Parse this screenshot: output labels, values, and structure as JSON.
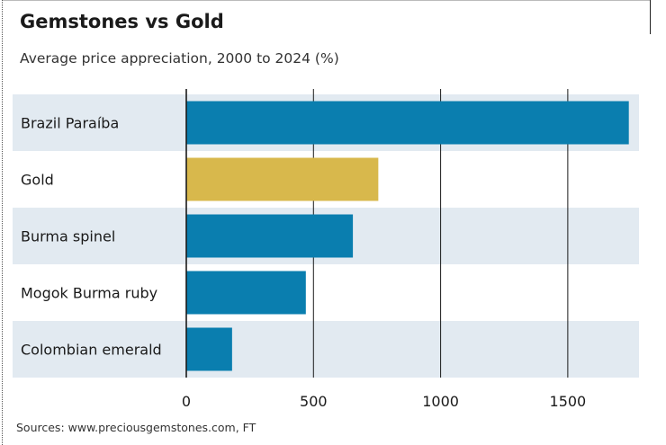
{
  "chart_data": {
    "type": "bar",
    "orientation": "horizontal",
    "title": "Gemstones vs Gold",
    "subtitle": "Average price appreciation, 2000 to 2024 (%)",
    "categories": [
      "Brazil Paraíba",
      "Gold",
      "Burma spinel",
      "Mogok Burma ruby",
      "Colombian emerald"
    ],
    "values": [
      1740,
      755,
      655,
      470,
      180
    ],
    "bar_colors": [
      "#0a7eaf",
      "#d8b84c",
      "#0a7eaf",
      "#0a7eaf",
      "#0a7eaf"
    ],
    "xlim": [
      0,
      1780
    ],
    "xticks": [
      0,
      500,
      1000,
      1500
    ],
    "xtick_labels": [
      "0",
      "500",
      "1000",
      "1500"
    ],
    "grid": "vertical",
    "band_color": "#e2eaf1",
    "source": "Sources: www.preciousgemstones.com, FT"
  }
}
